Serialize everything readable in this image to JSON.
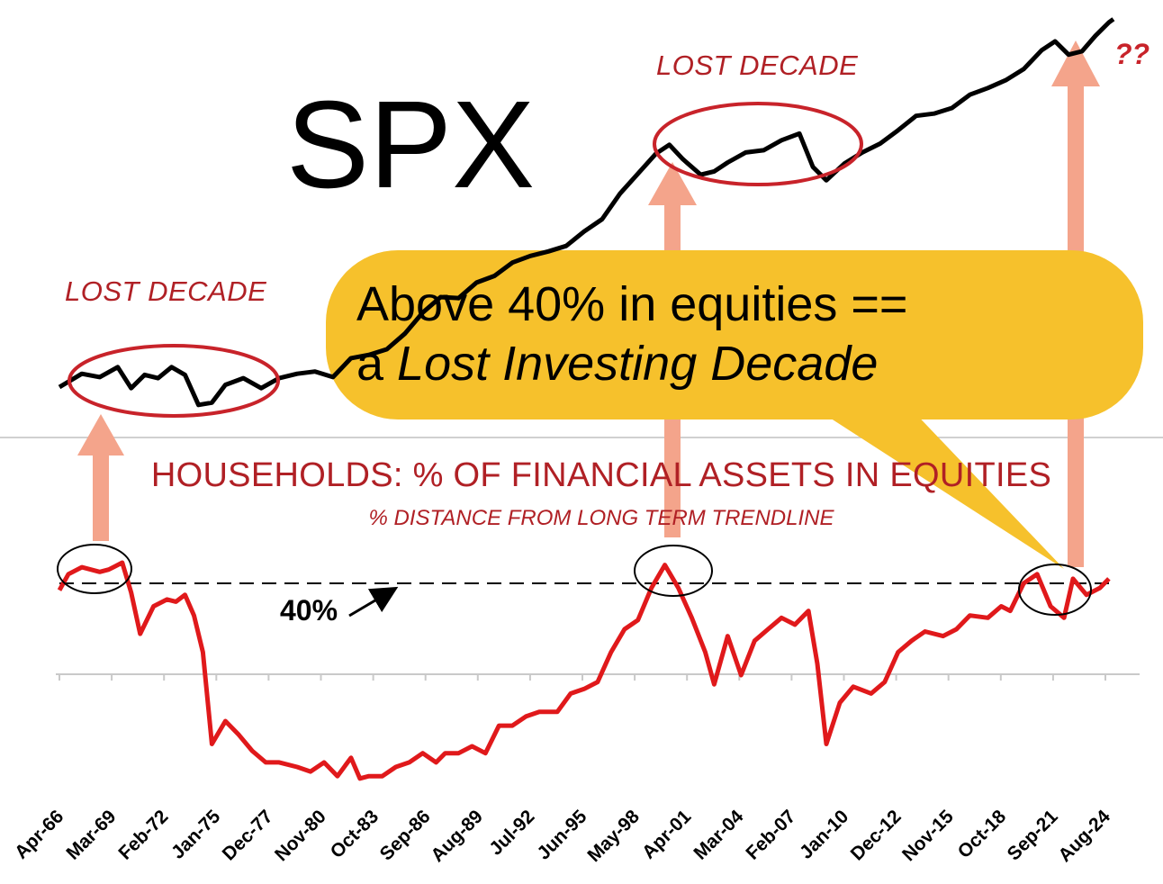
{
  "spx_label": "SPX",
  "lost_decade_label_1": "LOST DECADE",
  "lost_decade_label_2": "LOST DECADE",
  "question_marks": "??",
  "callout": {
    "line1": "Above 40% in equities ==",
    "line2_prefix": "a ",
    "line2_italic": "Lost Investing Decade",
    "color": "#f6c12c"
  },
  "colors": {
    "spx_line": "#000000",
    "equity_line": "#e0191b",
    "annotation_red": "#b02025",
    "arrow": "#f4a48b"
  },
  "chart_data": {
    "type": "line",
    "title": "HOUSEHOLDS: % OF FINANCIAL ASSETS IN EQUITIES",
    "subtitle": "% DISTANCE FROM LONG TERM TRENDLINE",
    "threshold_label": "40%",
    "x_tick_labels": [
      "Apr-66",
      "Mar-69",
      "Feb-72",
      "Jan-75",
      "Dec-77",
      "Nov-80",
      "Oct-83",
      "Sep-86",
      "Aug-89",
      "Jul-92",
      "Jun-95",
      "May-98",
      "Apr-01",
      "Mar-04",
      "Feb-07",
      "Jan-10",
      "Dec-12",
      "Nov-15",
      "Oct-18",
      "Sep-21",
      "Aug-24"
    ],
    "series": [
      {
        "name": "",
        "role": "households_equity_pct_distance_from_trend",
        "x": [
          1966.25,
          1966.75,
          1967.5,
          1968.5,
          1969.0,
          1969.75,
          1970.25,
          1970.75,
          1971.5,
          1972.25,
          1972.75,
          1973.25,
          1973.75,
          1974.25,
          1974.75,
          1975.5,
          1976.25,
          1977.0,
          1977.75,
          1978.5,
          1979.5,
          1980.25,
          1981.0,
          1981.75,
          1982.5,
          1983.0,
          1983.5,
          1984.25,
          1985.0,
          1985.75,
          1986.5,
          1987.25,
          1987.75,
          1988.5,
          1989.25,
          1990.0,
          1990.75,
          1991.5,
          1992.25,
          1993.0,
          1994.0,
          1994.75,
          1995.5,
          1996.25,
          1997.0,
          1997.75,
          1998.5,
          1999.25,
          2000.0,
          2000.75,
          2001.5,
          2002.25,
          2002.75,
          2003.5,
          2004.25,
          2005.0,
          2005.75,
          2006.5,
          2007.25,
          2008.0,
          2008.5,
          2009.0,
          2009.75,
          2010.5,
          2011.5,
          2012.25,
          2013.0,
          2013.75,
          2014.5,
          2015.5,
          2016.25,
          2017.0,
          2018.0,
          2018.75,
          2019.25,
          2020.0,
          2020.75,
          2021.5,
          2022.25,
          2022.75,
          2023.5,
          2024.25,
          2024.75
        ],
        "y": [
          37,
          44,
          47,
          45,
          46,
          49,
          36,
          18,
          30,
          33,
          32,
          35,
          26,
          10,
          -30,
          -20,
          -26,
          -33,
          -38,
          -38,
          -40,
          -42,
          -38,
          -44,
          -36,
          -45,
          -44,
          -44,
          -40,
          -38,
          -34,
          -38,
          -34,
          -34,
          -31,
          -34,
          -22,
          -22,
          -18,
          -16,
          -16,
          -8,
          -6,
          -3,
          10,
          20,
          24,
          38,
          48,
          38,
          25,
          10,
          -4,
          17,
          0,
          15,
          20,
          25,
          22,
          28,
          5,
          -30,
          -12,
          -5,
          -8,
          -3,
          10,
          15,
          19,
          17,
          20,
          26,
          25,
          30,
          28,
          40,
          44,
          30,
          25,
          42,
          35,
          38,
          42
        ]
      },
      {
        "name": "",
        "role": "spx_log_index",
        "x": [
          1966.25,
          1967.5,
          1968.5,
          1969.5,
          1970.25,
          1971.0,
          1971.75,
          1972.5,
          1973.25,
          1974.0,
          1974.75,
          1975.5,
          1976.5,
          1977.5,
          1978.5,
          1979.5,
          1980.5,
          1981.5,
          1982.5,
          1983.5,
          1984.5,
          1985.5,
          1986.5,
          1987.5,
          1988.5,
          1989.5,
          1990.5,
          1991.5,
          1992.5,
          1993.5,
          1994.5,
          1995.5,
          1996.5,
          1997.5,
          1998.5,
          1999.5,
          2000.25,
          2001.0,
          2002.0,
          2002.75,
          2003.5,
          2004.5,
          2005.5,
          2006.5,
          2007.5,
          2008.25,
          2009.0,
          2010.0,
          2011.0,
          2012.0,
          2013.0,
          2014.0,
          2015.0,
          2016.0,
          2017.0,
          2018.0,
          2019.0,
          2020.0,
          2021.0,
          2021.75,
          2022.5,
          2023.25,
          2024.0,
          2024.75,
          2025.0
        ],
        "y": [
          4.44,
          4.56,
          4.53,
          4.62,
          4.43,
          4.55,
          4.52,
          4.62,
          4.55,
          4.28,
          4.3,
          4.46,
          4.52,
          4.43,
          4.52,
          4.56,
          4.58,
          4.53,
          4.7,
          4.73,
          4.78,
          4.92,
          5.11,
          5.25,
          5.24,
          5.38,
          5.44,
          5.56,
          5.62,
          5.66,
          5.71,
          5.84,
          5.95,
          6.18,
          6.36,
          6.54,
          6.62,
          6.49,
          6.35,
          6.38,
          6.46,
          6.55,
          6.57,
          6.66,
          6.72,
          6.42,
          6.3,
          6.45,
          6.55,
          6.63,
          6.75,
          6.88,
          6.9,
          6.95,
          7.07,
          7.13,
          7.2,
          7.3,
          7.47,
          7.55,
          7.43,
          7.46,
          7.6,
          7.72,
          7.75
        ]
      }
    ],
    "threshold_line": 40,
    "circled_peaks": [
      "Mar-69",
      "Apr-01",
      "Sep-21"
    ]
  }
}
